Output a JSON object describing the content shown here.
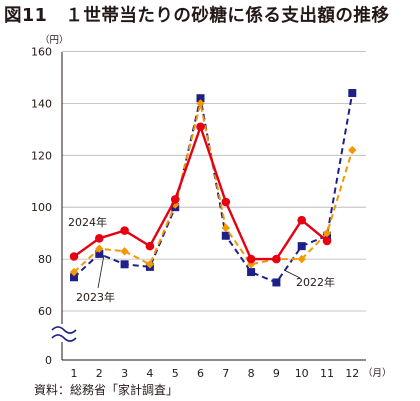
{
  "figure_title": "図11　１世帯当たりの砂糖に係る支出額の推移",
  "source": "資料：総務省「家計調査」",
  "chart_data": {
    "type": "line",
    "x": [
      1,
      2,
      3,
      4,
      5,
      6,
      7,
      8,
      9,
      10,
      11,
      12
    ],
    "x_tick_labels": [
      "1",
      "2",
      "3",
      "4",
      "5",
      "6",
      "7",
      "8",
      "9",
      "10",
      "11",
      "12"
    ],
    "x_unit": "（月）",
    "y_unit": "（円）",
    "y_ticks": [
      0,
      60,
      80,
      100,
      120,
      140,
      160
    ],
    "ylim": [
      0,
      160
    ],
    "y_axis_break": "between 0 and 60",
    "grid": true,
    "series": [
      {
        "name": "2024年",
        "color": "#e60012",
        "marker": "circle",
        "line": "solid",
        "values": [
          81,
          88,
          91,
          85,
          103,
          131,
          102,
          80,
          80,
          95,
          87,
          null
        ]
      },
      {
        "name": "2023年",
        "color": "#f39800",
        "marker": "diamond",
        "line": "dashed",
        "values": [
          75,
          84,
          83,
          78,
          101,
          140,
          92,
          78,
          80,
          80,
          90,
          122
        ]
      },
      {
        "name": "2022年",
        "color": "#1d2088",
        "marker": "square",
        "line": "dashed",
        "values": [
          73,
          82,
          78,
          77,
          100,
          142,
          89,
          75,
          71,
          85,
          89,
          144
        ]
      }
    ]
  }
}
